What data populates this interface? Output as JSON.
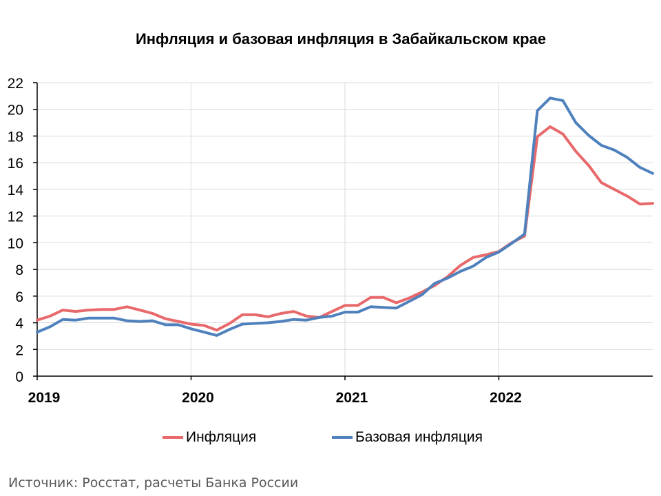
{
  "chart_data": {
    "type": "line",
    "title": "Инфляция и базовая инфляция в Забайкальском крае",
    "source": "Источник: Росстат, расчеты Банка России",
    "xlabel": "",
    "ylabel": "",
    "ylim": [
      0,
      22
    ],
    "yticks": [
      0,
      2,
      4,
      6,
      8,
      10,
      12,
      14,
      16,
      18,
      20,
      22
    ],
    "xtick_labels": [
      "2019",
      "2020",
      "2021",
      "2022"
    ],
    "x_start": "2019-01",
    "x_end": "2022-12",
    "grid": "vertical gridlines at year boundaries, horizontal gridlines",
    "legend_position": "bottom",
    "series": [
      {
        "name": "Инфляция",
        "color": "#E8696B",
        "values": [
          4.2,
          4.5,
          4.95,
          4.85,
          4.95,
          5.0,
          5.0,
          5.2,
          4.95,
          4.7,
          4.3,
          4.1,
          3.9,
          3.8,
          3.45,
          3.95,
          4.6,
          4.6,
          4.45,
          4.7,
          4.85,
          4.5,
          4.4,
          4.85,
          5.3,
          5.3,
          5.9,
          5.9,
          5.5,
          5.85,
          6.3,
          6.8,
          7.45,
          8.3,
          8.9,
          9.1,
          9.35,
          10.0,
          10.5,
          17.95,
          18.7,
          18.15,
          16.85,
          15.8,
          14.5,
          14.0,
          13.5,
          12.9,
          12.95
        ]
      },
      {
        "name": "Базовая инфляция",
        "color": "#4F81BD",
        "values": [
          3.3,
          3.7,
          4.25,
          4.2,
          4.35,
          4.35,
          4.35,
          4.15,
          4.1,
          4.15,
          3.85,
          3.85,
          3.55,
          3.3,
          3.05,
          3.5,
          3.9,
          3.95,
          4.0,
          4.1,
          4.25,
          4.2,
          4.4,
          4.5,
          4.8,
          4.8,
          5.2,
          5.15,
          5.1,
          5.6,
          6.1,
          6.95,
          7.35,
          7.85,
          8.25,
          8.9,
          9.3,
          9.95,
          10.65,
          19.9,
          20.85,
          20.65,
          19.0,
          18.05,
          17.3,
          16.95,
          16.4,
          15.65,
          15.2
        ]
      }
    ]
  }
}
